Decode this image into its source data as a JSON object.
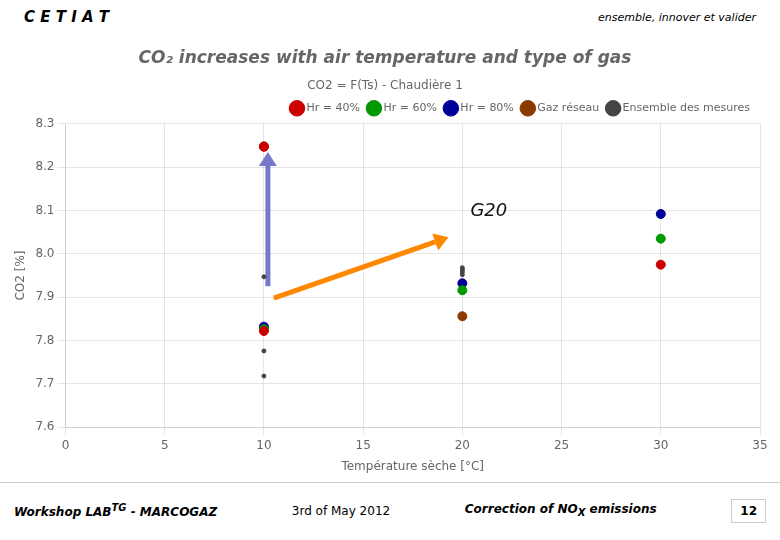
{
  "chart_data": {
    "type": "scatter",
    "title": "CO₂ increases with air temperature and type of gas",
    "subtitle": "CO2 = F(Ts) - Chaudière 1",
    "xlabel": "Température sèche [°C]",
    "ylabel": "CO2 [%]",
    "xlim": [
      0,
      35
    ],
    "ylim": [
      7.6,
      8.3
    ],
    "xticks": [
      0,
      5,
      10,
      15,
      20,
      25,
      30,
      35
    ],
    "yticks": [
      7.6,
      7.7,
      7.8,
      7.9,
      {
        "value": 8.0,
        "label": "8.0"
      },
      8.1,
      8.2,
      8.3
    ],
    "grid": true,
    "legend": "upper right",
    "series": [
      {
        "name": "Hr = 40%",
        "color": "#cc0000",
        "marker": "o",
        "x": [
          10,
          10,
          30
        ],
        "values": [
          7.822,
          8.247,
          7.975
        ]
      },
      {
        "name": "Hr = 60%",
        "color": "#009900",
        "marker": "o",
        "x": [
          10,
          20,
          30
        ],
        "values": [
          7.826,
          7.916,
          8.035
        ]
      },
      {
        "name": "Hr = 80%",
        "color": "#000099",
        "marker": "o",
        "x": [
          10,
          20,
          30
        ],
        "values": [
          7.832,
          7.932,
          8.092
        ]
      },
      {
        "name": "Gaz réseau",
        "color": "#8B3A00",
        "marker": "o",
        "x": [
          10,
          20
        ],
        "values": [
          8.248,
          7.856
        ]
      },
      {
        "name": "Ensemble des mesures",
        "color": "#444444",
        "marker": ".",
        "x": [
          10,
          10,
          10,
          20,
          20,
          20,
          20
        ],
        "values": [
          7.776,
          7.718,
          7.947,
          7.952,
          7.958,
          7.963,
          7.968
        ]
      }
    ],
    "arrows": [
      {
        "x_start": 10.2,
        "y_start": 7.925,
        "x_end": 10.2,
        "y_end": 8.235,
        "color": "#7777cc"
      },
      {
        "x_start": 10.5,
        "y_start": 7.898,
        "x_end": 19.3,
        "y_end": 8.038,
        "color": "#FF8800"
      }
    ],
    "annotations": [
      "G20"
    ],
    "header": [
      "C E T I A T",
      "ensemble, innover et valider"
    ],
    "footer": [
      [
        "Workshop LAB",
        "TG",
        " - MARCOGAZ"
      ],
      [
        "3rd of May 2012"
      ],
      [
        "Correction of NO",
        "X",
        " emissions"
      ],
      [
        "12"
      ]
    ]
  }
}
